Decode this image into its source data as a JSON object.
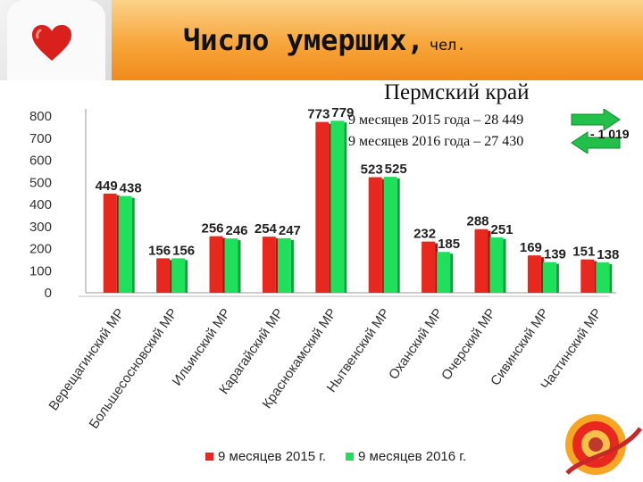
{
  "header": {
    "title": "Число умерших,",
    "unit": "чел."
  },
  "region_label": "Пермский край",
  "notes": [
    "9 месяцев 2015 года – 28 449",
    "9 месяцев 2016 года – 27 430"
  ],
  "difference": "- 1 019",
  "colors": {
    "series_2015": "#e8281e",
    "series_2016": "#1ee05a",
    "header_orange": "#f7a53a"
  },
  "chart_data": {
    "type": "bar",
    "categories": [
      "Верещагинский МР",
      "Большесосновский МР",
      "Ильинский МР",
      "Карагайский МР",
      "Краснокамский МР",
      "Нытвенский МР",
      "Оханский МР",
      "Очерский МР",
      "Сивинский МР",
      "Частинский МР"
    ],
    "series": [
      {
        "name": "9 месяцев 2015 г.",
        "values": [
          449,
          156,
          256,
          254,
          773,
          523,
          232,
          288,
          169,
          151
        ]
      },
      {
        "name": "9 месяцев 2016 г.",
        "values": [
          438,
          156,
          246,
          247,
          779,
          525,
          185,
          251,
          139,
          138
        ]
      }
    ],
    "y_ticks": [
      "0",
      "100",
      "200",
      "300",
      "400",
      "500",
      "600",
      "700",
      "800"
    ],
    "ylim": [
      0,
      800
    ],
    "grid": false,
    "legend_position": "bottom",
    "data_labels": true
  }
}
